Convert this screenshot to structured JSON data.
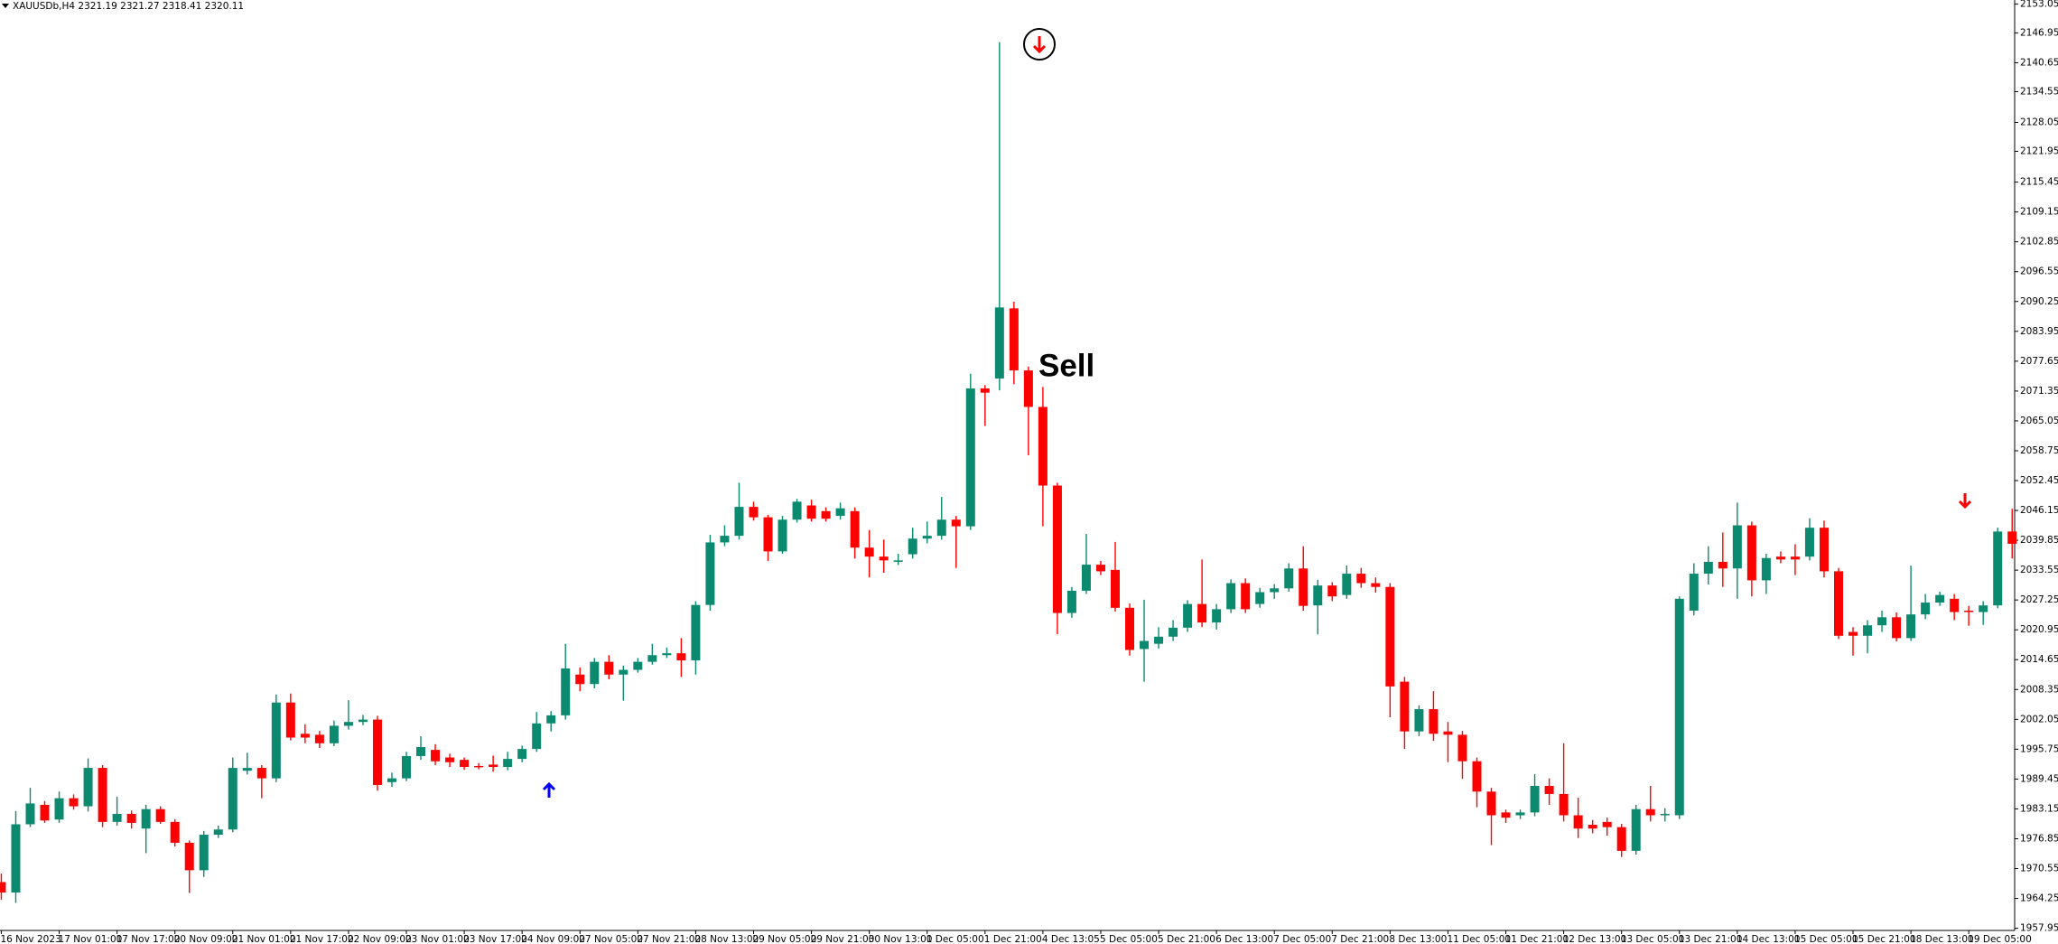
{
  "chart_data": {
    "type": "candlestick",
    "title": "XAUUSDb,H4  2321.19 2321.27 2318.41 2320.11",
    "annotation": "Sell",
    "up_color": "#0b8a6f",
    "down_color": "#ff0000",
    "ylim": [
      1957.95,
      2153.05
    ],
    "yticks": [
      1957.95,
      1964.25,
      1970.55,
      1976.85,
      1983.15,
      1989.45,
      1995.75,
      2002.05,
      2008.35,
      2014.65,
      2020.95,
      2027.25,
      2033.55,
      2039.85,
      2046.15,
      2052.45,
      2058.75,
      2065.05,
      2071.35,
      2077.65,
      2083.95,
      2090.25,
      2096.55,
      2102.85,
      2109.15,
      2115.45,
      2121.95,
      2128.05,
      2134.55,
      2140.65,
      2146.95,
      2153.05
    ],
    "categories": [
      "16 Nov 2023",
      null,
      null,
      null,
      "17 Nov 01:00",
      null,
      null,
      null,
      "17 Nov 17:00",
      null,
      null,
      null,
      "20 Nov 09:00",
      null,
      null,
      null,
      "21 Nov 01:00",
      null,
      null,
      null,
      "21 Nov 17:00",
      null,
      null,
      null,
      "22 Nov 09:00",
      null,
      null,
      null,
      "23 Nov 01:00",
      null,
      null,
      null,
      "23 Nov 17:00",
      null,
      null,
      null,
      "24 Nov 09:00",
      null,
      null,
      null,
      "27 Nov 05:00",
      null,
      null,
      null,
      "27 Nov 21:00",
      null,
      null,
      null,
      "28 Nov 13:00",
      null,
      null,
      null,
      "29 Nov 05:00",
      null,
      null,
      null,
      "29 Nov 21:00",
      null,
      null,
      null,
      "30 Nov 13:00",
      null,
      null,
      null,
      "1 Dec 05:00",
      null,
      null,
      null,
      "1 Dec 21:00",
      null,
      null,
      null,
      "4 Dec 13:05",
      null,
      null,
      null,
      "5 Dec 05:00",
      null,
      null,
      null,
      "5 Dec 21:00",
      null,
      null,
      null,
      "6 Dec 13:00",
      null,
      null,
      null,
      "7 Dec 05:00",
      null,
      null,
      null,
      "7 Dec 21:00",
      null,
      null,
      null,
      "8 Dec 13:00",
      null,
      null,
      null,
      "11 Dec 05:00",
      null,
      null,
      null,
      "11 Dec 21:00",
      null,
      null,
      null,
      "12 Dec 13:00",
      null,
      null,
      null,
      "13 Dec 05:00",
      null,
      null,
      null,
      "13 Dec 21:00",
      null,
      null,
      null,
      "14 Dec 13:00",
      null,
      null,
      null,
      "15 Dec 05:00",
      null,
      null,
      null,
      "15 Dec 21:00",
      null,
      null,
      null,
      "18 Dec 13:00",
      null,
      null,
      null,
      "19 Dec 05:00",
      null,
      null,
      null
    ],
    "open": [
      1967.7,
      1965.5,
      1979.9,
      1984.0,
      1980.9,
      1985.4,
      1983.7,
      1991.8,
      1980.4,
      1982.1,
      1979.0,
      1983.1,
      1980.4,
      1976.0,
      1970.2,
      1977.7,
      1978.8,
      1991.2,
      1991.8,
      1989.6,
      2005.6,
      1999.0,
      1998.8,
      1997.0,
      2000.7,
      2001.5,
      2002.0,
      1988.8,
      1989.6,
      1994.3,
      1995.6,
      1994.0,
      1993.5,
      1992.2,
      1992.5,
      1992.0,
      1993.7,
      1995.8,
      2001.2,
      2002.9,
      2011.5,
      2009.5,
      2014.2,
      2011.5,
      2012.5,
      2014.2,
      2015.6,
      2016.0,
      2014.5,
      2026.2,
      2039.4,
      2040.8,
      2046.9,
      2044.7,
      2037.5,
      2044.2,
      2047.2,
      2046.0,
      2045.0,
      2046.0,
      2038.3,
      2036.4,
      2035.3,
      2036.9,
      2040.2,
      2040.8,
      2044.2,
      2042.8,
      2071.9,
      2074.0,
      2088.8,
      2075.7,
      2068.0,
      2051.4,
      2024.5,
      2029.2,
      2034.7,
      2033.6,
      2025.6,
      2016.9,
      2018.0,
      2019.5,
      2021.4,
      2026.4,
      2022.5,
      2025.3,
      2030.8,
      2026.4,
      2028.9,
      2029.7,
      2033.9,
      2026.1,
      2030.3,
      2028.3,
      2032.8,
      2030.8,
      2030.0,
      2010.0,
      1999.5,
      2004.2,
      1999.5,
      1998.8,
      1993.2,
      1986.8,
      1982.4,
      1981.8,
      1982.4,
      1988.0,
      1986.3,
      1981.8,
      1979.8,
      1980.4,
      1979.3,
      1974.3,
      1983.1,
      1981.8,
      1981.8,
      2025.0,
      2032.8,
      2035.3,
      2033.9,
      2043.0,
      2031.4,
      2036.4,
      2036.4,
      2036.4,
      2042.5,
      2033.3,
      2020.5,
      2019.7,
      2021.9,
      2023.6,
      2019.2,
      2024.2,
      2026.7,
      2027.5,
      2025.0,
      2024.7,
      2026.1,
      2041.7
    ],
    "high": [
      1969.5,
      1982.7,
      1987.6,
      1984.8,
      1986.8,
      1986.2,
      1993.8,
      1992.4,
      1985.7,
      1982.8,
      1984.0,
      1983.7,
      1981.0,
      1976.5,
      1978.5,
      1979.6,
      1994.0,
      1995.0,
      1992.4,
      2007.3,
      2007.5,
      2001.0,
      1999.6,
      2001.8,
      2006.1,
      2003.0,
      2002.8,
      1990.8,
      1995.2,
      1998.5,
      1996.8,
      1994.8,
      1994.0,
      1992.8,
      1994.4,
      1995.2,
      1996.5,
      2003.6,
      2003.8,
      2018.0,
      2013.0,
      2015.0,
      2015.6,
      2013.4,
      2015.0,
      2018.0,
      2017.2,
      2019.2,
      2027.0,
      2041.0,
      2043.0,
      2052.0,
      2048.0,
      2045.2,
      2045.0,
      2048.6,
      2048.4,
      2046.8,
      2047.8,
      2046.8,
      2042.0,
      2040.0,
      2037.0,
      2042.5,
      2043.8,
      2049.0,
      2045.0,
      2075.0,
      2072.6,
      2145.0,
      2090.2,
      2076.5,
      2072.2,
      2052.0,
      2030.0,
      2041.2,
      2035.5,
      2039.5,
      2026.5,
      2027.3,
      2021.5,
      2023.0,
      2027.2,
      2035.8,
      2026.4,
      2031.6,
      2031.8,
      2029.8,
      2030.6,
      2035.0,
      2038.6,
      2031.5,
      2031.0,
      2034.5,
      2034.0,
      2032.0,
      2030.8,
      2011.0,
      2005.0,
      2008.0,
      2001.5,
      1999.6,
      1994.0,
      1987.6,
      1983.0,
      1983.0,
      1990.5,
      1989.6,
      1997.0,
      1985.5,
      1980.8,
      1981.3,
      1980.0,
      1984.0,
      1988.0,
      1983.3,
      2028.0,
      2035.0,
      2038.6,
      2041.5,
      2047.8,
      2043.8,
      2037.0,
      2037.5,
      2039.0,
      2044.5,
      2044.0,
      2034.0,
      2021.5,
      2023.0,
      2025.0,
      2024.6,
      2034.5,
      2028.5,
      2029.0,
      2028.5,
      2026.0,
      2027.0,
      2042.5,
      2046.5
    ],
    "low": [
      1964.0,
      1963.3,
      1979.3,
      1980.2,
      1980.2,
      1983.0,
      1982.6,
      1979.3,
      1979.6,
      1979.0,
      1973.8,
      1980.0,
      1975.2,
      1965.4,
      1968.8,
      1977.0,
      1978.2,
      1990.4,
      1985.4,
      1988.8,
      1997.6,
      1997.0,
      1996.0,
      1996.4,
      1999.9,
      2000.8,
      1987.0,
      1987.8,
      1989.0,
      1993.5,
      1992.4,
      1992.0,
      1991.4,
      1991.5,
      1991.0,
      1991.3,
      1993.0,
      1995.2,
      1999.5,
      2002.0,
      2008.0,
      2008.6,
      2010.5,
      2006.0,
      2011.9,
      2013.6,
      2015.0,
      2011.0,
      2011.5,
      2025.0,
      2038.6,
      2040.0,
      2044.0,
      2035.5,
      2037.0,
      2043.6,
      2043.8,
      2043.8,
      2044.2,
      2036.0,
      2032.0,
      2033.0,
      2034.6,
      2036.0,
      2039.2,
      2040.0,
      2034.0,
      2042.0,
      2064.0,
      2071.5,
      2072.8,
      2057.8,
      2042.8,
      2020.0,
      2023.5,
      2028.5,
      2032.5,
      2024.8,
      2015.5,
      2010.0,
      2017.0,
      2018.6,
      2020.5,
      2021.5,
      2021.0,
      2024.5,
      2024.5,
      2025.6,
      2027.5,
      2029.0,
      2025.0,
      2020.0,
      2027.0,
      2027.5,
      2029.8,
      2028.8,
      2002.5,
      1995.8,
      1998.5,
      1997.5,
      1993.0,
      1989.5,
      1983.5,
      1975.5,
      1980.2,
      1981.0,
      1981.6,
      1984.0,
      1980.5,
      1977.0,
      1978.0,
      1977.5,
      1973.0,
      1973.5,
      1980.5,
      1980.5,
      1981.0,
      2024.0,
      2030.5,
      2030.0,
      2027.5,
      2028.0,
      2028.5,
      2035.0,
      2032.5,
      2035.6,
      2032.0,
      2019.0,
      2015.5,
      2016.0,
      2020.5,
      2018.5,
      2018.6,
      2023.2,
      2026.0,
      2023.0,
      2021.8,
      2022.0,
      2025.5,
      2036.0
    ],
    "close": [
      1965.5,
      1979.9,
      1984.3,
      1980.7,
      1985.4,
      1983.7,
      1991.8,
      1980.4,
      1982.1,
      1980.2,
      1983.1,
      1980.4,
      1976.0,
      1970.2,
      1977.7,
      1978.8,
      1991.8,
      1991.8,
      1989.6,
      2005.6,
      1998.2,
      1998.2,
      1997.0,
      2000.7,
      2001.5,
      2002.0,
      1988.2,
      1989.6,
      1994.3,
      1996.2,
      1993.2,
      1993.0,
      1992.0,
      1992.0,
      1992.0,
      1993.7,
      1995.8,
      2001.2,
      2002.9,
      2012.8,
      2009.5,
      2014.2,
      2011.5,
      2012.5,
      2014.2,
      2015.6,
      2016.0,
      2014.5,
      2026.2,
      2039.4,
      2040.8,
      2046.9,
      2044.7,
      2037.5,
      2044.2,
      2048.0,
      2044.4,
      2044.4,
      2046.6,
      2038.3,
      2036.4,
      2035.6,
      2035.6,
      2040.2,
      2040.8,
      2044.2,
      2042.8,
      2071.9,
      2071.0,
      2089.0,
      2075.7,
      2068.0,
      2051.4,
      2024.5,
      2029.2,
      2034.7,
      2033.3,
      2025.6,
      2016.7,
      2018.6,
      2019.5,
      2021.4,
      2026.4,
      2022.5,
      2025.3,
      2030.8,
      2025.3,
      2028.9,
      2029.7,
      2033.9,
      2026.0,
      2030.3,
      2028.0,
      2032.8,
      2030.8,
      2030.0,
      2009.0,
      1999.5,
      2004.2,
      1999.0,
      1998.8,
      1993.2,
      1986.8,
      1981.8,
      1981.3,
      1982.4,
      1988.0,
      1986.3,
      1981.8,
      1979.0,
      1979.0,
      1979.3,
      1974.3,
      1983.1,
      1981.8,
      1982.1,
      2027.5,
      2032.8,
      2035.3,
      2033.9,
      2043.0,
      2031.4,
      2036.1,
      2035.8,
      2035.8,
      2042.5,
      2033.3,
      2019.7,
      2019.7,
      2021.9,
      2023.6,
      2019.2,
      2024.2,
      2026.7,
      2028.3,
      2024.7,
      2024.7,
      2026.1,
      2041.7,
      2039.1
    ]
  }
}
